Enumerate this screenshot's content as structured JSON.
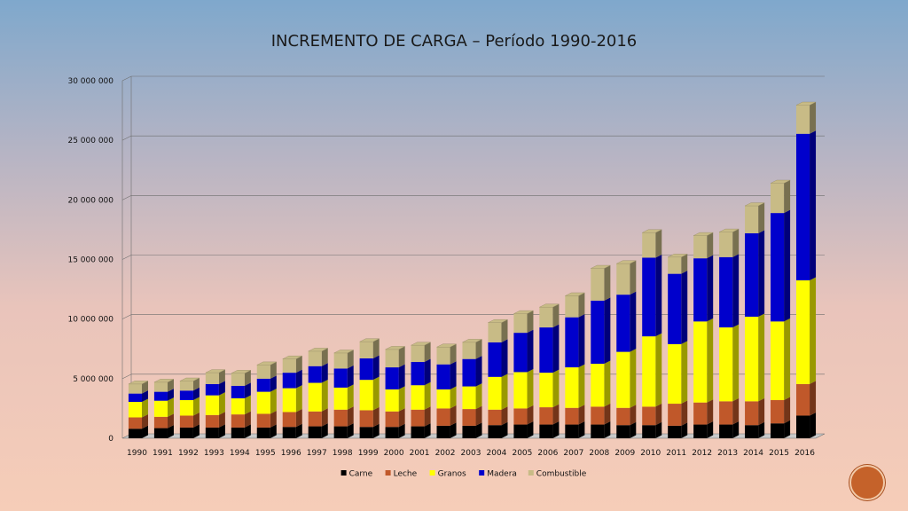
{
  "chart_data": {
    "type": "bar",
    "stacked": true,
    "title": "INCREMENTO DE CARGA – Período 1990-2016",
    "categories": [
      "1990",
      "1991",
      "1992",
      "1993",
      "1994",
      "1995",
      "1996",
      "1997",
      "1998",
      "1999",
      "2000",
      "2001",
      "2002",
      "2003",
      "2004",
      "2005",
      "2006",
      "2007",
      "2008",
      "2009",
      "2010",
      "2011",
      "2012",
      "2013",
      "2014",
      "2015",
      "2016"
    ],
    "y_ticks": [
      "0",
      "5 000 000",
      "10 000 000",
      "15 000 000",
      "20 000 000",
      "25 000 000",
      "30 000 000"
    ],
    "ylim": [
      0,
      30000000
    ],
    "grid": true,
    "legend_position": "bottom",
    "series": [
      {
        "name": "Carne",
        "color": "#000000",
        "values": [
          800000,
          850000,
          900000,
          900000,
          900000,
          900000,
          950000,
          1000000,
          1000000,
          950000,
          950000,
          1000000,
          1050000,
          1050000,
          1100000,
          1150000,
          1150000,
          1150000,
          1150000,
          1100000,
          1100000,
          1050000,
          1150000,
          1150000,
          1100000,
          1250000,
          1900000
        ]
      },
      {
        "name": "Leche",
        "color": "#c0582a",
        "values": [
          950000,
          950000,
          1000000,
          1050000,
          1100000,
          1150000,
          1250000,
          1250000,
          1400000,
          1400000,
          1300000,
          1400000,
          1450000,
          1400000,
          1300000,
          1350000,
          1450000,
          1400000,
          1500000,
          1450000,
          1550000,
          1850000,
          1850000,
          1950000,
          2000000,
          1950000,
          2650000
        ]
      },
      {
        "name": "Granos",
        "color": "#ffff00",
        "values": [
          1300000,
          1350000,
          1300000,
          1650000,
          1350000,
          1850000,
          2000000,
          2400000,
          1850000,
          2550000,
          1850000,
          2050000,
          1600000,
          1900000,
          2750000,
          3050000,
          2900000,
          3400000,
          3600000,
          4700000,
          5900000,
          5000000,
          6800000,
          6200000,
          7100000,
          6600000,
          8700000
        ]
      },
      {
        "name": "Madera",
        "color": "#0000cc",
        "values": [
          700000,
          750000,
          800000,
          950000,
          1050000,
          1100000,
          1300000,
          1400000,
          1600000,
          1800000,
          1850000,
          1950000,
          2100000,
          2300000,
          2900000,
          3300000,
          3800000,
          4200000,
          5300000,
          4800000,
          6600000,
          5900000,
          5300000,
          5900000,
          7000000,
          9100000,
          12300000
        ]
      },
      {
        "name": "Combustible",
        "color": "#c8bb86",
        "values": [
          800000,
          800000,
          800000,
          950000,
          1050000,
          1150000,
          1150000,
          1250000,
          1300000,
          1400000,
          1500000,
          1400000,
          1450000,
          1400000,
          1650000,
          1600000,
          1700000,
          1800000,
          2700000,
          2600000,
          2100000,
          1400000,
          1900000,
          2100000,
          2300000,
          2500000,
          2400000
        ]
      }
    ]
  },
  "colors": {
    "grid": "#6e6e6e",
    "plot_floor": "#c9c9c9"
  },
  "icons": {
    "corner_badge": "orange-circle-badge"
  }
}
